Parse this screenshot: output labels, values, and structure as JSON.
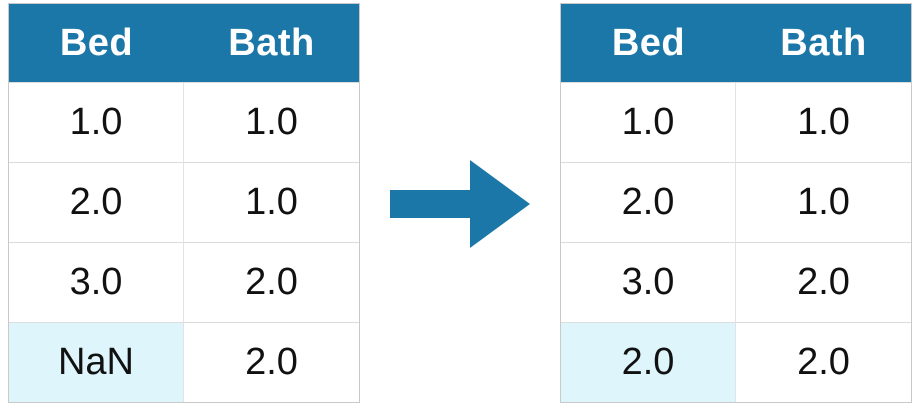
{
  "before_table": {
    "headers": [
      "Bed",
      "Bath"
    ],
    "rows": [
      [
        "1.0",
        "1.0"
      ],
      [
        "2.0",
        "1.0"
      ],
      [
        "3.0",
        "2.0"
      ],
      [
        "NaN",
        "2.0"
      ]
    ]
  },
  "after_table": {
    "headers": [
      "Bed",
      "Bath"
    ],
    "rows": [
      [
        "1.0",
        "1.0"
      ],
      [
        "2.0",
        "1.0"
      ],
      [
        "3.0",
        "2.0"
      ],
      [
        "2.0",
        "2.0"
      ]
    ]
  },
  "colors": {
    "header_bg": "#1b77a7",
    "highlight_bg": "#ddf5fb",
    "arrow": "#1b77a7"
  },
  "icons": {
    "arrow": "right-arrow-icon"
  }
}
